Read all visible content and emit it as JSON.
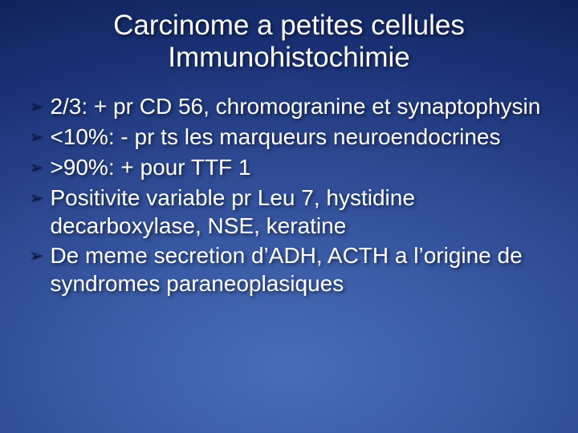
{
  "slide": {
    "title_line1": "Carcinome a petites cellules",
    "title_line2": "Immunohistochimie",
    "bullets": [
      "2/3: + pr CD 56, chromogranine et synaptophysin",
      "<10%: - pr ts les marqueurs neuroendocrines",
      ">90%: + pour TTF 1",
      "Positivite variable pr Leu 7, hystidine decarboxylase, NSE, keratine",
      "De meme secretion d’ADH, ACTH a l’origine de syndromes paraneoplasiques"
    ],
    "bullet_marker": "➢",
    "style": {
      "background_gradient": [
        "#4a6db8",
        "#3a5aa5",
        "#2c4890",
        "#1d3378",
        "#122560",
        "#0a1a4a"
      ],
      "title_color": "#ffffff",
      "title_fontsize_pt": 26,
      "body_color": "#ffffff",
      "body_fontsize_pt": 21,
      "bullet_marker_color": "#0a1844",
      "text_shadow": "2px 2px 4px rgba(0,0,0,0.6)",
      "font_family": "Arial"
    }
  }
}
